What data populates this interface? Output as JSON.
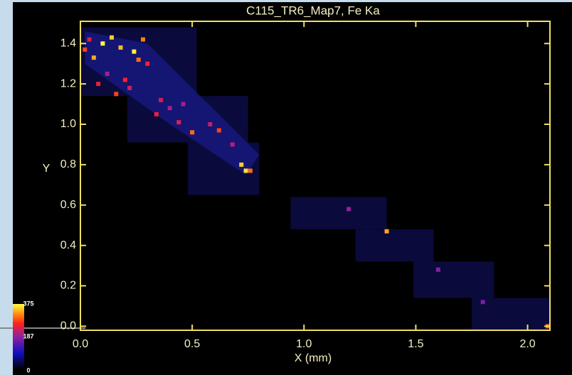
{
  "chart_data": {
    "type": "heatmap",
    "title": "C115_TR6_Map7, Fe Ka",
    "xlabel": "X (mm)",
    "ylabel": "Y",
    "xlim": [
      0,
      2.1
    ],
    "ylim": [
      -0.02,
      1.51
    ],
    "xticks": [
      {
        "value": 0,
        "label": "0.0"
      },
      0.5,
      {
        "value": 1,
        "label": "1.0"
      },
      1.5,
      {
        "value": 2,
        "label": "2.0"
      }
    ],
    "yticks": [
      {
        "value": 0,
        "label": "0.0"
      },
      0.2,
      0.4,
      0.6,
      0.8,
      {
        "value": 1,
        "label": "1.0"
      },
      1.2,
      1.4
    ],
    "colorbar": {
      "ticks": [
        0,
        187,
        375
      ]
    },
    "regions": [
      {
        "x": [
          0,
          0.52
        ],
        "y": [
          1.14,
          1.48
        ]
      },
      {
        "x": [
          0.21,
          0.75
        ],
        "y": [
          0.91,
          1.14
        ]
      },
      {
        "x": [
          0.48,
          0.8
        ],
        "y": [
          0.65,
          0.91
        ]
      },
      {
        "x": [
          0.94,
          1.37
        ],
        "y": [
          0.48,
          0.64
        ]
      },
      {
        "x": [
          1.23,
          1.58
        ],
        "y": [
          0.32,
          0.48
        ]
      },
      {
        "x": [
          1.49,
          1.85
        ],
        "y": [
          0.14,
          0.32
        ]
      },
      {
        "x": [
          1.75,
          2.1
        ],
        "y": [
          -0.02,
          0.14
        ]
      }
    ],
    "points": {
      "x": [
        0.06,
        0.1,
        0.14,
        0.18,
        0.24,
        0.26,
        0.3,
        0.08,
        0.16,
        0.22,
        0.34,
        0.4,
        0.44,
        0.5,
        0.58,
        0.62,
        0.68,
        0.72,
        0.74,
        0.76,
        0.12,
        0.2,
        0.36,
        0.28,
        1.2,
        1.37,
        1.6,
        1.8,
        2.09,
        0.02,
        0.04,
        0.46
      ],
      "y": [
        1.33,
        1.4,
        1.43,
        1.38,
        1.36,
        1.32,
        1.3,
        1.2,
        1.15,
        1.18,
        1.05,
        1.08,
        1.01,
        0.96,
        1.0,
        0.97,
        0.9,
        0.8,
        0.77,
        0.77,
        1.25,
        1.22,
        1.12,
        1.42,
        0.58,
        0.47,
        0.28,
        0.12,
        0.0,
        1.37,
        1.42,
        1.1
      ],
      "values": [
        330,
        375,
        350,
        340,
        370,
        300,
        260,
        250,
        280,
        230,
        250,
        200,
        240,
        300,
        220,
        280,
        210,
        350,
        360,
        300,
        200,
        260,
        230,
        310,
        190,
        330,
        180,
        170,
        300,
        280,
        240,
        200
      ]
    }
  }
}
